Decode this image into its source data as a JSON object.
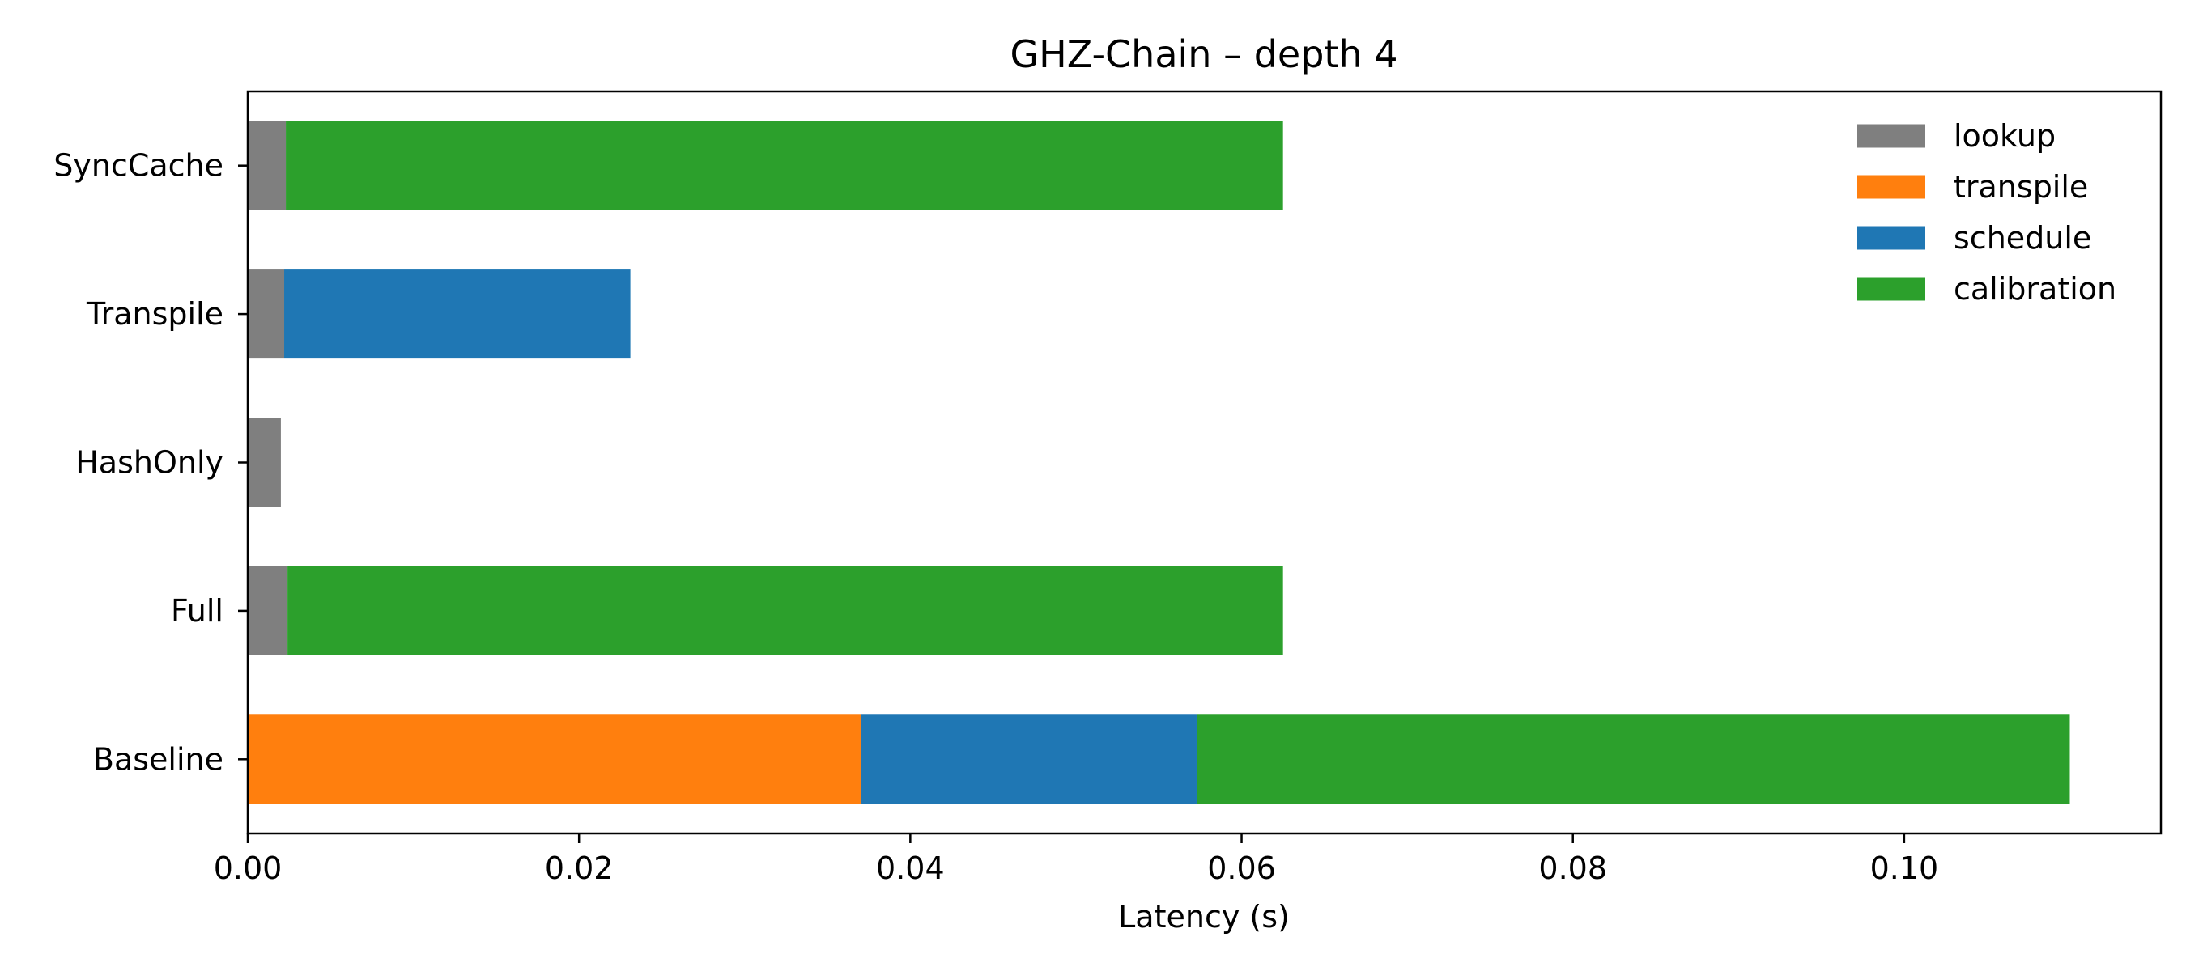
{
  "chart_data": {
    "type": "bar",
    "orientation": "horizontal",
    "stacked": true,
    "title": "GHZ-Chain – depth 4",
    "xlabel": "Latency (s)",
    "ylabel": "",
    "xlim": [
      0,
      0.1155
    ],
    "xticks": [
      "0.00",
      "0.02",
      "0.04",
      "0.06",
      "0.08",
      "0.10"
    ],
    "xtick_values": [
      0,
      0.02,
      0.04,
      0.06,
      0.08,
      0.1
    ],
    "categories": [
      "Baseline",
      "Full",
      "HashOnly",
      "Transpile",
      "SyncCache"
    ],
    "series": [
      {
        "name": "lookup",
        "color": "#7f7f7f",
        "values": [
          0,
          0.0024,
          0.002,
          0.0022,
          0.0023
        ]
      },
      {
        "name": "transpile",
        "color": "#ff7f0e",
        "values": [
          0.037,
          0,
          0,
          0,
          0
        ]
      },
      {
        "name": "schedule",
        "color": "#1f77b4",
        "values": [
          0.0203,
          0,
          0,
          0.0209,
          0
        ]
      },
      {
        "name": "calibration",
        "color": "#2ca02c",
        "values": [
          0.0527,
          0.0601,
          0,
          0,
          0.0602
        ]
      }
    ],
    "legend_position": "top-right",
    "grid": false
  }
}
